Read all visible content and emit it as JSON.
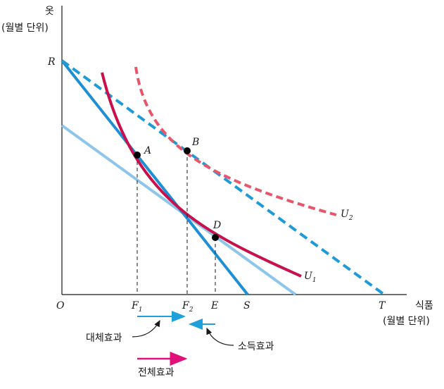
{
  "axes": {
    "y_title": "옷",
    "y_unit": "(월별 단위)",
    "x_title": "식품",
    "x_unit": "(월별 단위)",
    "origin": "O"
  },
  "points": {
    "R": "R",
    "A": "A",
    "B": "B",
    "D": "D",
    "S": "S",
    "T": "T",
    "E": "E",
    "F1": "F",
    "F1_sub": "1",
    "F2": "F",
    "F2_sub": "2"
  },
  "curves": {
    "U1": "U",
    "U1_sub": "1",
    "U2": "U",
    "U2_sub": "2"
  },
  "effects": {
    "substitution": "대체효과",
    "income": "소득효과",
    "total": "전체효과"
  },
  "colors": {
    "axis": "#1a1a1a",
    "budget_original": "#1e8fd5",
    "budget_rotated": "#1e9ad8",
    "budget_parallel": "#8ec5ea",
    "indifference_u1": "#c8104a",
    "indifference_u2": "#e8566c",
    "effect_arrow_blue": "#1ea0dc",
    "effect_arrow_total": "#e0107a"
  }
}
